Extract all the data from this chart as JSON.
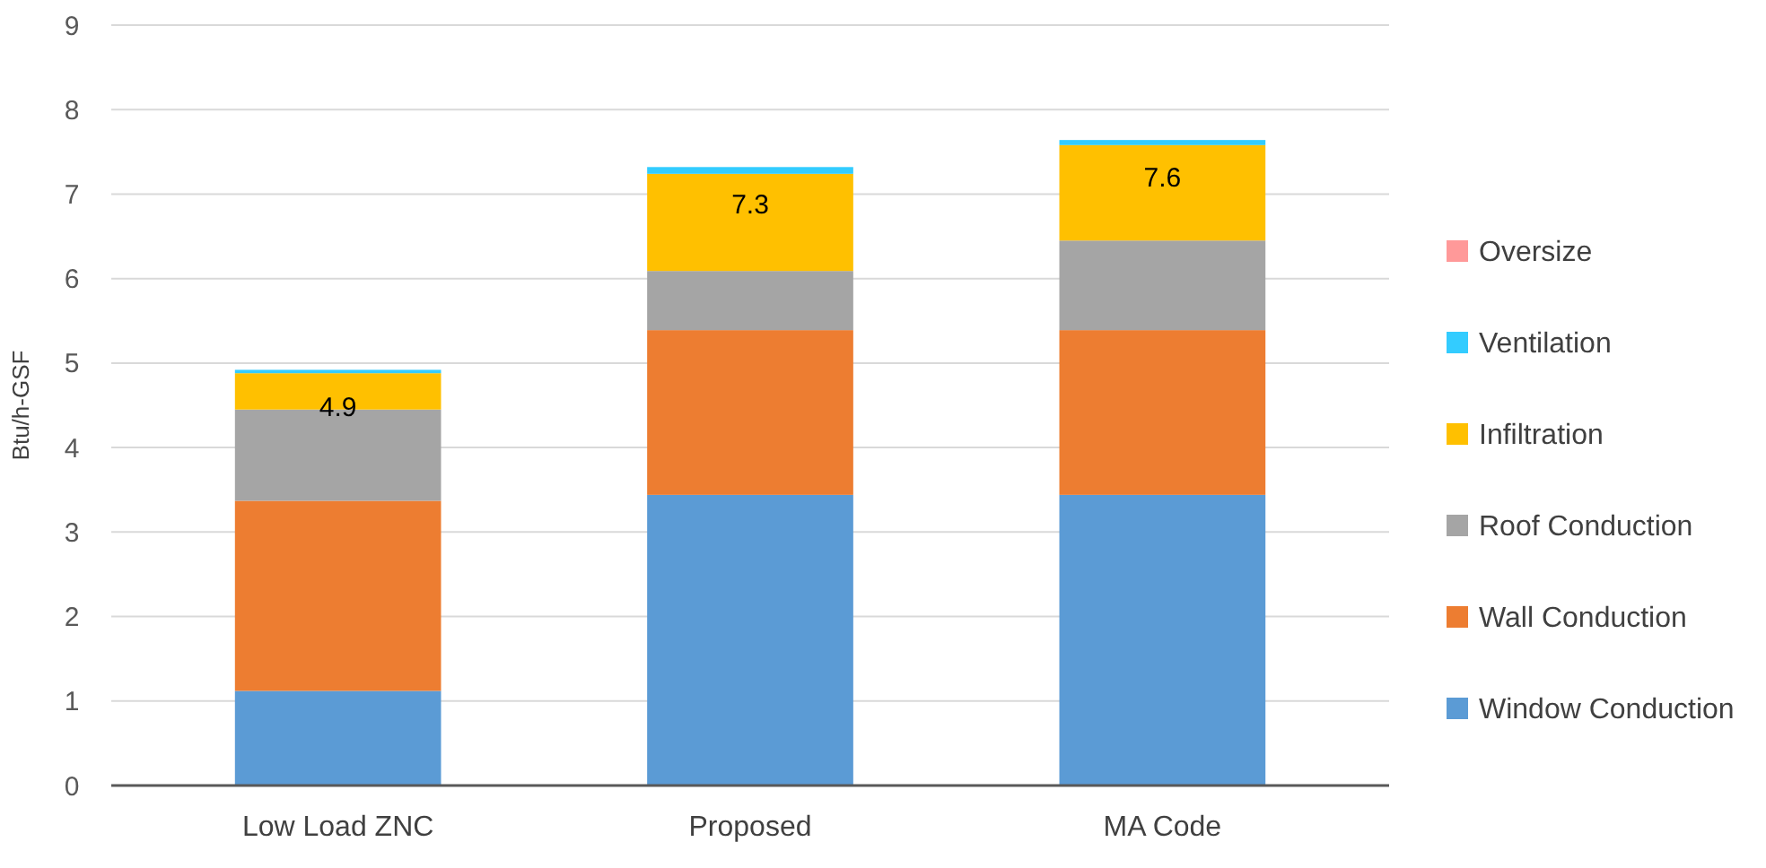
{
  "chart_data": {
    "type": "bar",
    "stacked": true,
    "ylabel": "Btu/h-GSF",
    "categories": [
      "Low Load ZNC",
      "Proposed",
      "MA Code"
    ],
    "series": [
      {
        "name": "Window Conduction",
        "color": "#5b9bd5",
        "values": [
          1.12,
          3.44,
          3.44
        ]
      },
      {
        "name": "Wall Conduction",
        "color": "#ed7d31",
        "values": [
          2.25,
          1.95,
          1.95
        ]
      },
      {
        "name": "Roof Conduction",
        "color": "#a5a5a5",
        "values": [
          1.08,
          0.7,
          1.06
        ]
      },
      {
        "name": "Infiltration",
        "color": "#ffc000",
        "values": [
          0.43,
          1.15,
          1.13
        ]
      },
      {
        "name": "Ventilation",
        "color": "#33ccff",
        "values": [
          0.04,
          0.08,
          0.06
        ]
      },
      {
        "name": "Oversize",
        "color": "#ff9999",
        "values": [
          0,
          0,
          0
        ]
      }
    ],
    "totals": [
      "4.9",
      "7.3",
      "7.6"
    ],
    "ylim": [
      0,
      9
    ],
    "yticks": [
      0,
      1,
      2,
      3,
      4,
      5,
      6,
      7,
      8,
      9
    ],
    "grid": "y",
    "legend": "right"
  }
}
